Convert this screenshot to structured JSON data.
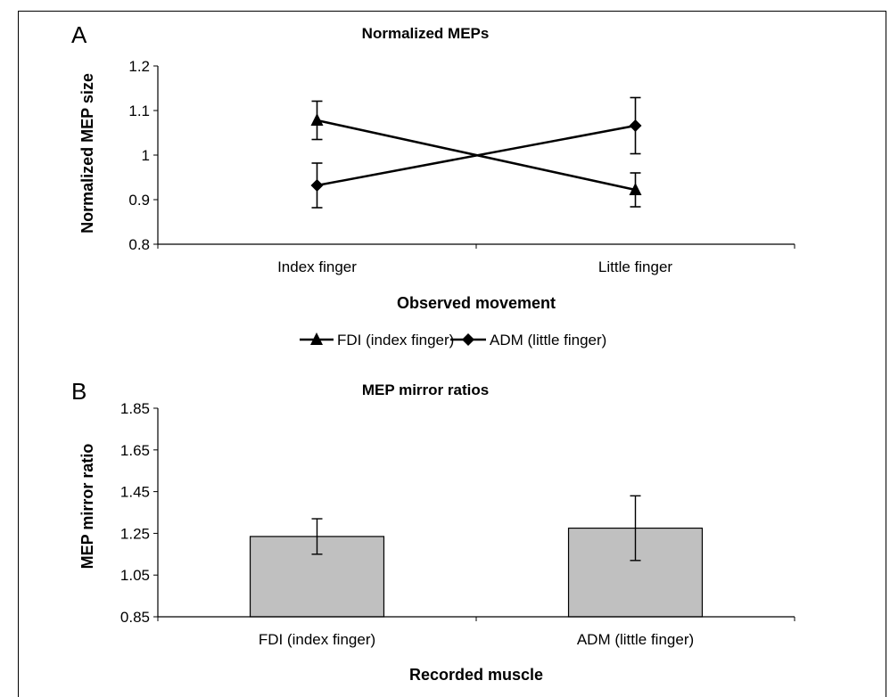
{
  "chart_data": [
    {
      "panel": "A",
      "type": "line",
      "title": "Normalized MEPs",
      "xlabel": "Observed movement",
      "ylabel": "Normalized MEP size",
      "categories": [
        "Index finger",
        "Little finger"
      ],
      "ylim": [
        0.8,
        1.2
      ],
      "yticks": [
        "0.8",
        "0.9",
        "1",
        "1.1",
        "1.2"
      ],
      "legend_position": "bottom",
      "series": [
        {
          "name": "FDI (index finger)",
          "marker": "triangle",
          "values": [
            1.078,
            0.922
          ],
          "error": [
            0.043,
            0.038
          ]
        },
        {
          "name": "ADM (little finger)",
          "marker": "diamond",
          "values": [
            0.932,
            1.066
          ],
          "error": [
            0.05,
            0.063
          ]
        }
      ]
    },
    {
      "panel": "B",
      "type": "bar",
      "title": "MEP mirror ratios",
      "xlabel": "Recorded muscle",
      "ylabel": "MEP mirror ratio",
      "categories": [
        "FDI (index finger)",
        "ADM (little finger)"
      ],
      "ylim": [
        0.85,
        1.85
      ],
      "yticks": [
        "0.85",
        "1.05",
        "1.25",
        "1.45",
        "1.65",
        "1.85"
      ],
      "values": [
        1.235,
        1.275
      ],
      "error": [
        0.085,
        0.155
      ],
      "bar_color": "#c0c0c0"
    }
  ]
}
